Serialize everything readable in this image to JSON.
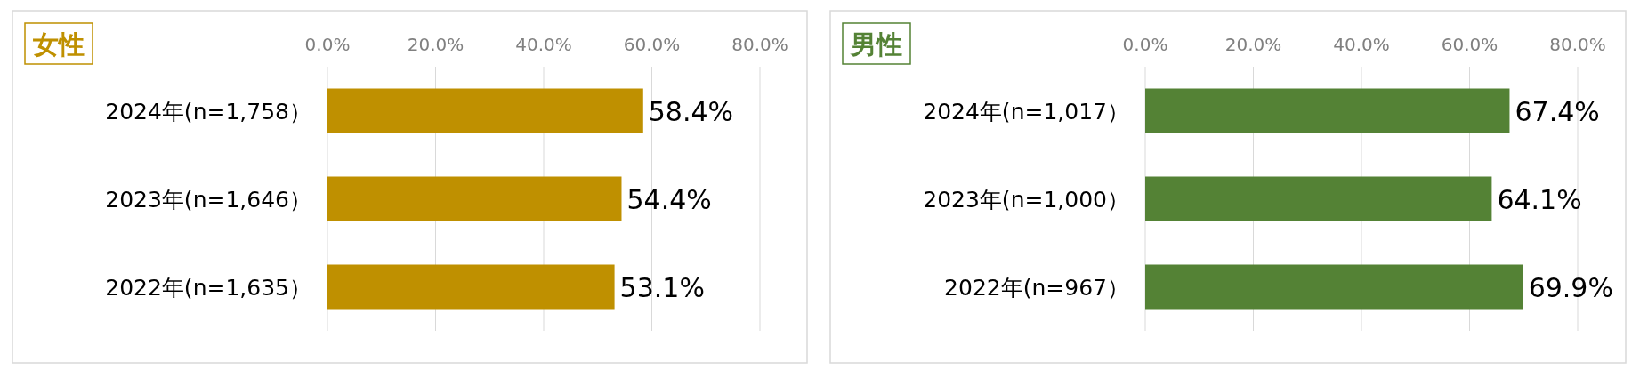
{
  "chart_data": [
    {
      "type": "bar",
      "orientation": "horizontal",
      "title": "女性",
      "categories": [
        "2024年(n=1,758）",
        "2023年(n=1,646）",
        "2022年(n=1,635）"
      ],
      "values": [
        58.4,
        54.4,
        53.1
      ],
      "value_labels": [
        "58.4%",
        "54.4%",
        "53.1%"
      ],
      "color": "#bf9000",
      "xlim": [
        0,
        80
      ],
      "xticks": [
        {
          "value": 0,
          "label": "0.0%"
        },
        {
          "value": 20,
          "label": "20.0%"
        },
        {
          "value": 40,
          "label": "40.0%"
        },
        {
          "value": 60,
          "label": "60.0%"
        },
        {
          "value": 80,
          "label": "80.0%"
        }
      ],
      "grid": "x"
    },
    {
      "type": "bar",
      "orientation": "horizontal",
      "title": "男性",
      "categories": [
        "2024年(n=1,017）",
        "2023年(n=1,000）",
        "2022年(n=967）"
      ],
      "values": [
        67.4,
        64.1,
        69.9
      ],
      "value_labels": [
        "67.4%",
        "64.1%",
        "69.9%"
      ],
      "color": "#548235",
      "xlim": [
        0,
        80
      ],
      "xticks": [
        {
          "value": 0,
          "label": "0.0%"
        },
        {
          "value": 20,
          "label": "20.0%"
        },
        {
          "value": 40,
          "label": "40.0%"
        },
        {
          "value": 60,
          "label": "60.0%"
        },
        {
          "value": 80,
          "label": "80.0%"
        }
      ],
      "grid": "x"
    }
  ]
}
